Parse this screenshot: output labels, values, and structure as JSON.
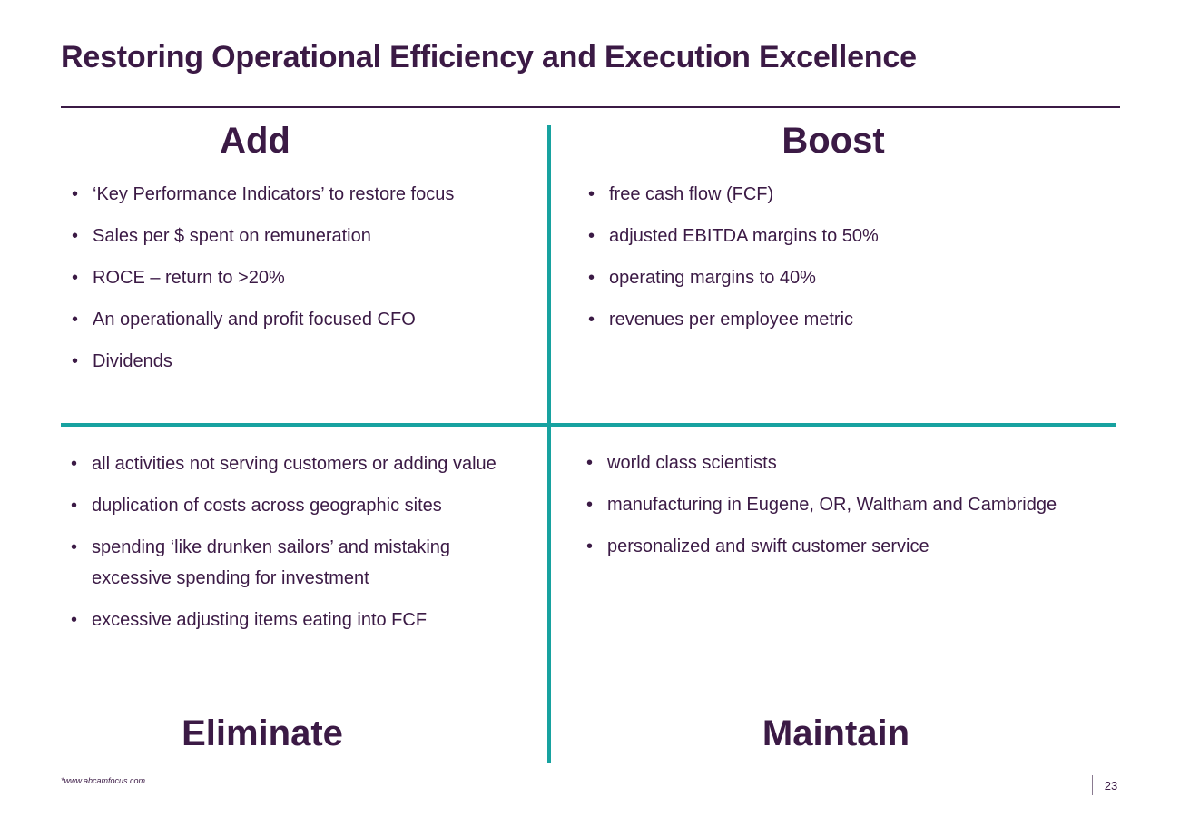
{
  "slide": {
    "title": "Restoring Operational Efficiency and Execution Excellence",
    "footnote": "*www.abcamfocus.com",
    "page_number": "23"
  },
  "quadrants": {
    "add": {
      "heading": "Add",
      "items": [
        "‘Key Performance Indicators’ to restore focus",
        "Sales per $ spent on remuneration",
        "ROCE – return to >20%",
        "An operationally and profit focused CFO",
        "Dividends"
      ]
    },
    "boost": {
      "heading": "Boost",
      "items": [
        "free cash flow (FCF)",
        "adjusted EBITDA margins to 50%",
        "operating margins to 40%",
        "revenues per employee metric"
      ]
    },
    "eliminate": {
      "heading": "Eliminate",
      "items": [
        "all activities not serving customers or adding value",
        "duplication of costs across geographic sites",
        "spending ‘like drunken sailors’ and mistaking excessive spending for investment",
        "excessive adjusting items eating into FCF"
      ]
    },
    "maintain": {
      "heading": "Maintain",
      "items": [
        "world class scientists",
        "manufacturing in Eugene, OR, Waltham and Cambridge",
        "personalized and swift customer service"
      ]
    }
  },
  "colors": {
    "text": "#3b1a45",
    "divider": "#17a2a0"
  }
}
